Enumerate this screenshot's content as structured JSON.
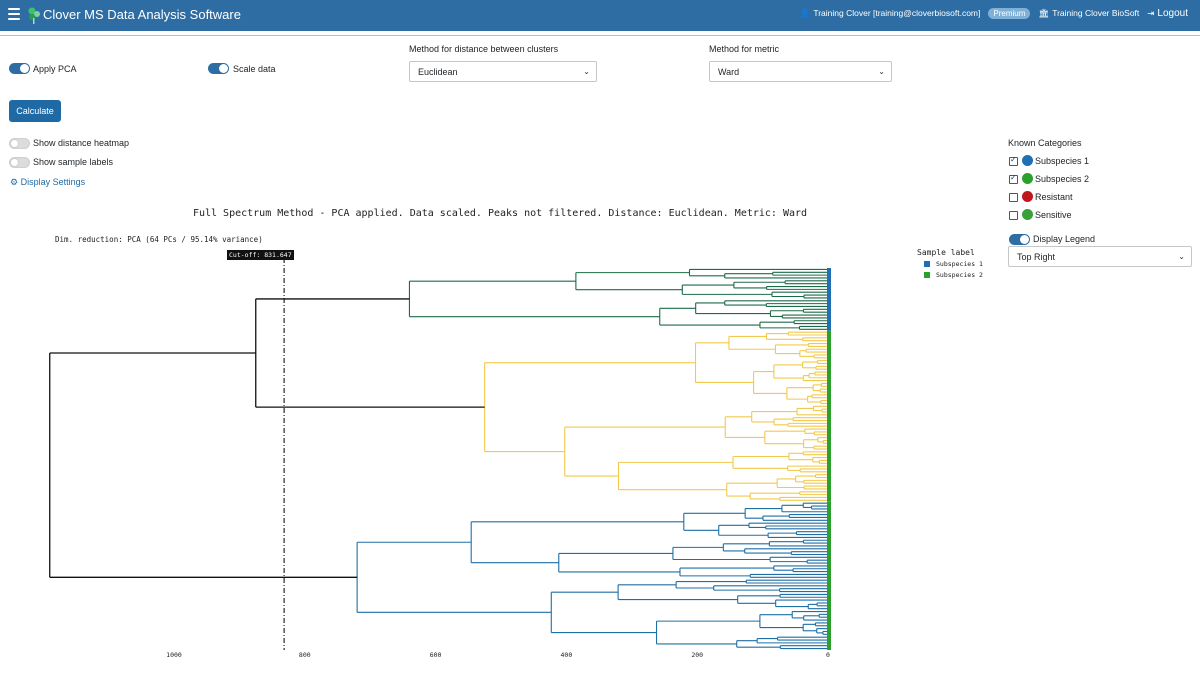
{
  "app": {
    "title": "Clover MS Data Analysis Software",
    "user": "Training Clover [training@cloverbiosoft.com]",
    "plan_badge": "Premium",
    "org": "Training Clover BioSoft",
    "logout": "Logout",
    "brand_color": "#2d6da3"
  },
  "controls": {
    "apply_pca": {
      "label": "Apply PCA",
      "on": true
    },
    "scale_data": {
      "label": "Scale data",
      "on": true
    },
    "distance_method": {
      "label": "Method for distance between clusters",
      "value": "Euclidean"
    },
    "metric_method": {
      "label": "Method for metric",
      "value": "Ward"
    },
    "calculate_label": "Calculate",
    "show_heatmap": {
      "label": "Show distance heatmap",
      "on": false
    },
    "show_sample_labels": {
      "label": "Show sample labels",
      "on": false
    },
    "display_settings": "Display Settings"
  },
  "known_categories": {
    "title": "Known Categories",
    "items": [
      {
        "label": "Subspecies 1",
        "checked": true,
        "color": "#1f6fb2"
      },
      {
        "label": "Subspecies 2",
        "checked": true,
        "color": "#2ca02c"
      },
      {
        "label": "Resistant",
        "checked": false,
        "color": "#c0161d"
      },
      {
        "label": "Sensitive",
        "checked": false,
        "color": "#3aa03a"
      }
    ],
    "display_legend": {
      "label": "Display Legend",
      "on": true
    },
    "legend_position": "Top Right"
  },
  "chart_data": {
    "type": "dendrogram",
    "title": "Full Spectrum Method - PCA applied. Data scaled. Peaks not filtered. Distance: Euclidean. Metric: Ward",
    "subtitle": "Dim. reduction: PCA (64 PCs / 95.14% variance)",
    "cutoff_label": "Cut-off: 831.647",
    "cutoff_value": 831.647,
    "x_ticks": [
      1000,
      800,
      600,
      400,
      200,
      0
    ],
    "legend": {
      "title": "Sample label",
      "entries": [
        {
          "name": "Subspecies 1",
          "color": "#1f6fb2"
        },
        {
          "name": "Subspecies 2",
          "color": "#2ca02c"
        }
      ]
    },
    "clusters": [
      {
        "color": "#1e6b4a",
        "merge_height": 640,
        "leaves": 22,
        "label_color": "#1f6fb2"
      },
      {
        "color": "#f2c94c",
        "merge_height": 525,
        "leaves": 60,
        "label_color": "#2ca02c"
      },
      {
        "color": "#1f6fa5",
        "merge_height": 720,
        "leaves": 52,
        "label_color": "#2ca02c"
      }
    ],
    "top_merges": [
      {
        "children": [
          "cluster-1",
          "cluster-2"
        ],
        "height": 875
      },
      {
        "children": [
          "cluster-1+2",
          "cluster-3"
        ],
        "height": 1190
      }
    ],
    "link_color_above_cutoff": "#111111"
  }
}
